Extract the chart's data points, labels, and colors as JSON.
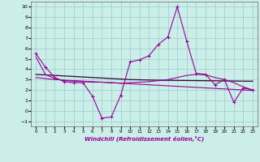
{
  "xlabel": "Windchill (Refroidissement éolien,°C)",
  "background_color": "#cceee8",
  "grid_color": "#99cccc",
  "line_color": "#990099",
  "line_color2": "#330033",
  "xlim": [
    -0.5,
    23.5
  ],
  "ylim": [
    -1.5,
    10.5
  ],
  "xticks": [
    0,
    1,
    2,
    3,
    4,
    5,
    6,
    7,
    8,
    9,
    10,
    11,
    12,
    13,
    14,
    15,
    16,
    17,
    18,
    19,
    20,
    21,
    22,
    23
  ],
  "yticks": [
    -1,
    0,
    1,
    2,
    3,
    4,
    5,
    6,
    7,
    8,
    9,
    10
  ],
  "line1_x": [
    0,
    1,
    2,
    3,
    4,
    5,
    6,
    7,
    8,
    9,
    10,
    11,
    12,
    13,
    14,
    15,
    16,
    17,
    18,
    19,
    20,
    21,
    22,
    23
  ],
  "line1_y": [
    5.5,
    4.2,
    3.2,
    2.8,
    2.7,
    2.7,
    1.4,
    -0.7,
    -0.6,
    1.5,
    4.7,
    4.9,
    5.3,
    6.4,
    7.1,
    10.0,
    6.7,
    3.6,
    3.5,
    2.5,
    3.0,
    0.8,
    2.2,
    2.0
  ],
  "line2_x": [
    0,
    1,
    2,
    3,
    4,
    5,
    6,
    7,
    8,
    9,
    10,
    11,
    12,
    13,
    14,
    15,
    16,
    17,
    18,
    19,
    20,
    21,
    22,
    23
  ],
  "line2_y": [
    5.2,
    3.5,
    3.1,
    2.9,
    2.85,
    2.8,
    2.75,
    2.75,
    2.7,
    2.65,
    2.7,
    2.75,
    2.8,
    2.9,
    3.0,
    3.2,
    3.4,
    3.5,
    3.45,
    3.2,
    3.0,
    2.7,
    2.3,
    2.0
  ],
  "line3_x": [
    0,
    1,
    2,
    3,
    4,
    5,
    6,
    7,
    8,
    9,
    10,
    11,
    12,
    13,
    14,
    15,
    16,
    17,
    18,
    19,
    20,
    21,
    22,
    23
  ],
  "line3_y": [
    3.2,
    3.1,
    3.0,
    2.95,
    2.9,
    2.85,
    2.8,
    2.75,
    2.7,
    2.65,
    2.6,
    2.55,
    2.5,
    2.45,
    2.4,
    2.35,
    2.3,
    2.25,
    2.2,
    2.15,
    2.1,
    2.05,
    2.0,
    1.95
  ],
  "line4_x": [
    0,
    1,
    2,
    3,
    4,
    5,
    6,
    7,
    8,
    9,
    10,
    11,
    12,
    13,
    14,
    15,
    16,
    17,
    18,
    19,
    20,
    21,
    22,
    23
  ],
  "line4_y": [
    3.5,
    3.45,
    3.4,
    3.35,
    3.3,
    3.25,
    3.2,
    3.15,
    3.1,
    3.05,
    3.0,
    2.98,
    2.96,
    2.94,
    2.93,
    2.92,
    2.91,
    2.9,
    2.89,
    2.88,
    2.87,
    2.86,
    2.85,
    2.84
  ]
}
